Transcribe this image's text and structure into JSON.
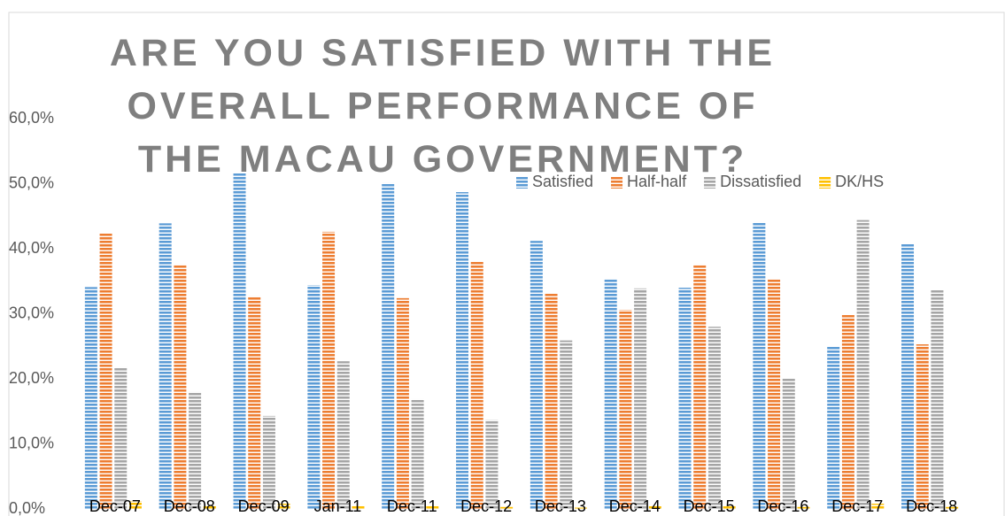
{
  "chart_data": {
    "type": "bar",
    "title": "ARE YOU SATISFIED WITH THE OVERALL PERFORMANCE OF THE MACAU GOVERNMENT?",
    "categories": [
      "Dec-07",
      "Dec-08",
      "Dec-09",
      "Jan-11",
      "Dec-11",
      "Dec-12",
      "Dec-13",
      "Dec-14",
      "Dec-15",
      "Dec-16",
      "Dec-17",
      "Dec-18"
    ],
    "series": [
      {
        "name": "Satisfied",
        "color": "#5b9bd5",
        "values": [
          34.1,
          43.9,
          51.7,
          34.4,
          50.1,
          48.7,
          41.2,
          35.4,
          34.0,
          44.1,
          24.9,
          40.8
        ]
      },
      {
        "name": "Half-half",
        "color": "#ed7d31",
        "values": [
          42.4,
          37.6,
          32.7,
          42.6,
          32.4,
          38.0,
          33.1,
          30.6,
          37.6,
          35.4,
          29.9,
          25.3
        ]
      },
      {
        "name": "Dissatisfied",
        "color": "#a5a5a5",
        "values": [
          21.8,
          18.0,
          14.3,
          22.7,
          16.9,
          13.7,
          25.9,
          33.9,
          28.0,
          20.0,
          44.4,
          33.6
        ]
      },
      {
        "name": "DK/HS",
        "color": "#ffc000",
        "values": [
          1.2,
          0.5,
          0.8,
          0.5,
          0.6,
          0.3,
          0.2,
          0.5,
          0.4,
          0.3,
          0.8,
          0.3
        ]
      }
    ],
    "ylim": [
      0,
      60
    ],
    "yticks": [
      {
        "value": 0,
        "label": "0,0%"
      },
      {
        "value": 10,
        "label": "10,0%"
      },
      {
        "value": 20,
        "label": "20,0%"
      },
      {
        "value": 30,
        "label": "30,0%"
      },
      {
        "value": 40,
        "label": "40,0%"
      },
      {
        "value": 50,
        "label": "50,0%"
      },
      {
        "value": 60,
        "label": "60,0%"
      }
    ],
    "grid": false,
    "legend": "top-right"
  }
}
